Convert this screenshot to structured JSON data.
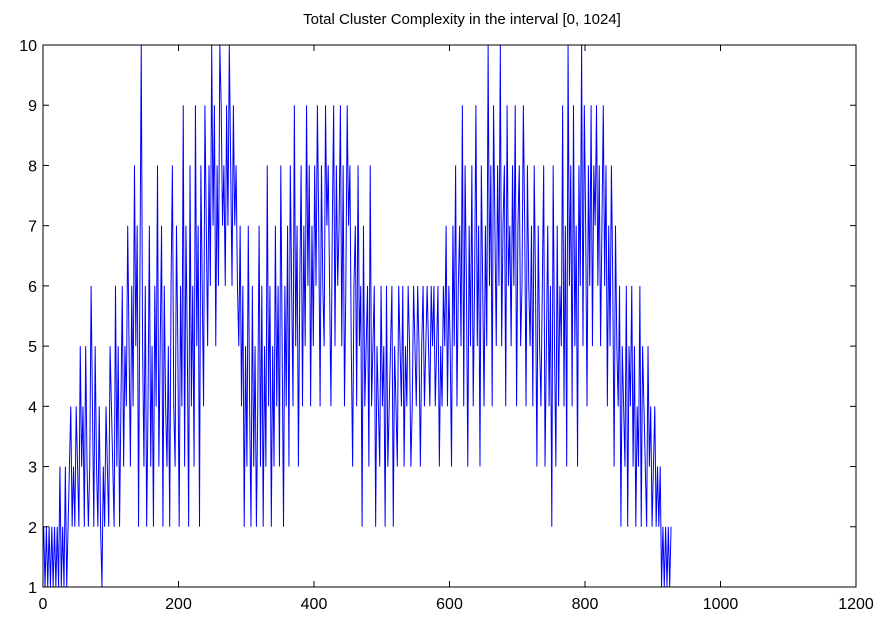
{
  "chart_data": {
    "type": "line",
    "title": "Total Cluster Complexity in the interval [0, 1024]",
    "xlabel": "",
    "ylabel": "",
    "xlim": [
      0,
      1200
    ],
    "ylim": [
      1,
      10
    ],
    "xticks": [
      0,
      200,
      400,
      600,
      800,
      1000,
      1200
    ],
    "yticks": [
      1,
      2,
      3,
      4,
      5,
      6,
      7,
      8,
      9,
      10
    ],
    "xtick_labels": [
      "0",
      "200",
      "400",
      "600",
      "800",
      "1000",
      "1200"
    ],
    "ytick_labels": [
      "1",
      "2",
      "3",
      "4",
      "5",
      "6",
      "7",
      "8",
      "9",
      "10"
    ],
    "grid": false,
    "legend": "none",
    "series": [
      {
        "color": "#0000ff",
        "x_start": 1,
        "x_step": 2,
        "values": [
          2,
          1,
          2,
          1,
          2,
          1,
          2,
          1,
          2,
          1,
          2,
          1,
          3,
          1,
          2,
          1,
          3,
          1,
          2,
          3,
          4,
          2,
          3,
          2,
          4,
          3,
          2,
          5,
          3,
          4,
          2,
          5,
          3,
          2,
          3,
          6,
          4,
          2,
          5,
          3,
          2,
          4,
          2,
          1,
          3,
          2,
          4,
          3,
          2,
          5,
          4,
          3,
          2,
          6,
          3,
          5,
          2,
          4,
          6,
          3,
          5,
          4,
          7,
          5,
          3,
          6,
          4,
          8,
          5,
          7,
          2,
          6,
          10,
          5,
          3,
          6,
          2,
          4,
          7,
          3,
          5,
          2,
          6,
          4,
          8,
          3,
          5,
          7,
          2,
          6,
          4,
          3,
          5,
          2,
          6,
          8,
          4,
          3,
          7,
          5,
          2,
          6,
          4,
          9,
          3,
          7,
          5,
          2,
          8,
          4,
          6,
          3,
          9,
          5,
          7,
          2,
          8,
          6,
          4,
          9,
          7,
          5,
          8,
          6,
          10,
          7,
          9,
          5,
          8,
          6,
          10,
          9,
          7,
          8,
          6,
          9,
          7,
          10,
          8,
          6,
          9,
          7,
          8,
          6,
          5,
          7,
          4,
          6,
          2,
          5,
          3,
          7,
          4,
          2,
          6,
          3,
          5,
          2,
          4,
          7,
          3,
          6,
          2,
          5,
          3,
          8,
          4,
          6,
          2,
          5,
          3,
          7,
          4,
          6,
          3,
          8,
          5,
          2,
          6,
          4,
          7,
          3,
          8,
          6,
          4,
          9,
          5,
          7,
          3,
          6,
          8,
          4,
          7,
          5,
          9,
          6,
          8,
          4,
          7,
          5,
          8,
          6,
          9,
          7,
          4,
          8,
          6,
          5,
          9,
          7,
          8,
          6,
          4,
          7,
          9,
          5,
          8,
          6,
          7,
          9,
          5,
          8,
          4,
          6,
          9,
          7,
          8,
          5,
          3,
          6,
          7,
          4,
          8,
          5,
          6,
          2,
          7,
          4,
          5,
          6,
          3,
          8,
          4,
          5,
          6,
          2,
          5,
          4,
          3,
          6,
          4,
          5,
          2,
          6,
          3,
          4,
          5,
          6,
          2,
          5,
          4,
          3,
          6,
          5,
          4,
          6,
          3,
          5,
          4,
          6,
          5,
          3,
          4,
          6,
          5,
          4,
          6,
          5,
          3,
          5,
          6,
          4,
          5,
          6,
          5,
          4,
          6,
          5,
          6,
          4,
          5,
          6,
          3,
          5,
          4,
          6,
          5,
          7,
          4,
          6,
          5,
          3,
          7,
          5,
          8,
          4,
          6,
          7,
          5,
          9,
          4,
          8,
          6,
          3,
          7,
          5,
          8,
          4,
          6,
          9,
          5,
          7,
          3,
          8,
          6,
          4,
          7,
          5,
          10,
          6,
          8,
          4,
          9,
          7,
          5,
          8,
          6,
          10,
          5,
          7,
          8,
          4,
          9,
          6,
          7,
          5,
          8,
          6,
          9,
          4,
          7,
          8,
          5,
          6,
          9,
          7,
          4,
          8,
          6,
          5,
          7,
          4,
          8,
          6,
          3,
          7,
          5,
          4,
          6,
          8,
          3,
          5,
          7,
          4,
          6,
          2,
          8,
          5,
          3,
          7,
          4,
          6,
          5,
          9,
          4,
          7,
          3,
          10,
          6,
          8,
          4,
          9,
          5,
          7,
          3,
          8,
          6,
          10,
          5,
          9,
          7,
          4,
          8,
          6,
          9,
          5,
          8,
          7,
          9,
          6,
          8,
          5,
          7,
          9,
          6,
          8,
          4,
          7,
          5,
          8,
          6,
          3,
          7,
          5,
          4,
          6,
          2,
          5,
          4,
          3,
          6,
          2,
          5,
          4,
          6,
          3,
          5,
          2,
          4,
          3,
          6,
          2,
          5,
          4,
          3,
          2,
          5,
          3,
          4,
          2,
          3,
          4,
          2,
          3,
          2,
          3,
          1,
          2,
          1,
          2,
          1,
          2,
          1,
          2
        ]
      }
    ]
  }
}
